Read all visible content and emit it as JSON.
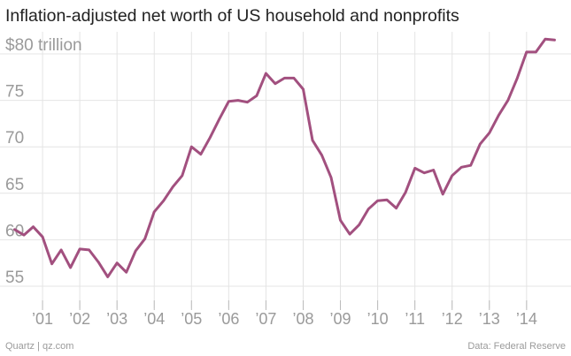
{
  "chart_data": {
    "type": "line",
    "title": "Inflation-adjusted net worth of US household and nonprofits",
    "xlabel": "",
    "ylabel": "",
    "ylim": [
      53,
      82
    ],
    "xlim": [
      2000.0,
      2015.05
    ],
    "yticks": [
      55,
      60,
      65,
      70,
      75,
      80
    ],
    "ytick_labels": [
      "55",
      "60",
      "65",
      "70",
      "75",
      "$80 trillion"
    ],
    "xticks": [
      2001,
      2002,
      2003,
      2004,
      2005,
      2006,
      2007,
      2008,
      2009,
      2010,
      2011,
      2012,
      2013,
      2014
    ],
    "xtick_labels": [
      "’01",
      "’02",
      "’03",
      "’04",
      "’05",
      "’06",
      "’07",
      "’08",
      "’09",
      "’10",
      "’11",
      "’12",
      "’13",
      "’14"
    ],
    "grid": true,
    "series": [
      {
        "name": "Net worth",
        "color": "#a2507f",
        "x": [
          2000.25,
          2000.5,
          2000.75,
          2001.0,
          2001.25,
          2001.5,
          2001.75,
          2002.0,
          2002.25,
          2002.5,
          2002.75,
          2003.0,
          2003.25,
          2003.5,
          2003.75,
          2004.0,
          2004.25,
          2004.5,
          2004.75,
          2005.0,
          2005.25,
          2005.5,
          2005.75,
          2006.0,
          2006.25,
          2006.5,
          2006.75,
          2007.0,
          2007.25,
          2007.5,
          2007.75,
          2008.0,
          2008.25,
          2008.5,
          2008.75,
          2009.0,
          2009.25,
          2009.5,
          2009.75,
          2010.0,
          2010.25,
          2010.5,
          2010.75,
          2011.0,
          2011.25,
          2011.5,
          2011.75,
          2012.0,
          2012.25,
          2012.5,
          2012.75,
          2013.0,
          2013.25,
          2013.5,
          2013.75,
          2014.0,
          2014.25,
          2014.5,
          2014.75
        ],
        "values": [
          61.1,
          60.5,
          61.4,
          60.3,
          57.4,
          58.9,
          57.0,
          59.0,
          58.9,
          57.6,
          56.0,
          57.5,
          56.5,
          58.8,
          60.1,
          63.0,
          64.2,
          65.7,
          66.9,
          70.0,
          69.2,
          71.0,
          73.0,
          74.9,
          75.0,
          74.8,
          75.5,
          77.9,
          76.8,
          77.4,
          77.4,
          76.2,
          70.7,
          69.1,
          66.7,
          62.1,
          60.6,
          61.6,
          63.3,
          64.2,
          64.3,
          63.4,
          65.1,
          67.7,
          67.2,
          67.5,
          64.9,
          66.9,
          67.8,
          68.0,
          70.3,
          71.5,
          73.4,
          75.0,
          77.4,
          80.2,
          80.2,
          81.6,
          81.5
        ]
      }
    ]
  },
  "footer": {
    "source_left": "Quartz | qz.com",
    "source_right": "Data: Federal Reserve"
  }
}
